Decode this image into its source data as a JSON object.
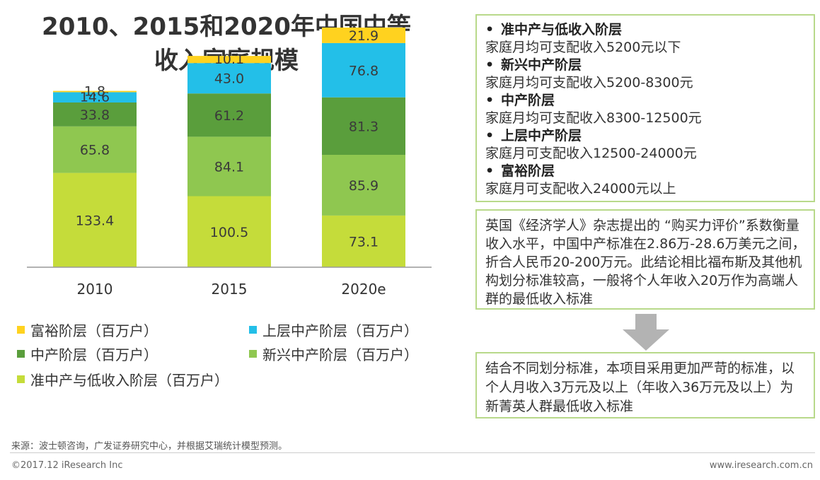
{
  "title_line1": "2010、2015和2020年中国中等",
  "title_line2": "收入家庭规模",
  "chart_data": {
    "type": "stacked-bar",
    "title": "2010、2015和2020年中国中等收入家庭规模",
    "categories": [
      "2010",
      "2015",
      "2020e"
    ],
    "unit": "百万户",
    "series": [
      {
        "name": "准中产与低收入阶层（百万户）",
        "color": "#c5dc3a",
        "values": [
          133.4,
          100.5,
          73.1
        ]
      },
      {
        "name": "新兴中产阶层（百万户）",
        "color": "#8fc750",
        "values": [
          65.8,
          84.1,
          85.9
        ]
      },
      {
        "name": "中产阶层（百万户）",
        "color": "#5a9e3c",
        "values": [
          33.8,
          61.2,
          81.3
        ]
      },
      {
        "name": "上层中产阶层（百万户）",
        "color": "#23bfe8",
        "values": [
          14.6,
          43.0,
          76.8
        ]
      },
      {
        "name": "富裕阶层（百万户）",
        "color": "#ffd21f",
        "values": [
          1.8,
          10.1,
          21.9
        ]
      }
    ],
    "labels": [
      [
        "133.4",
        "100.5",
        "73.1"
      ],
      [
        "65.8",
        "84.1",
        "85.9"
      ],
      [
        "33.8",
        "61.2",
        "81.3"
      ],
      [
        "14.6",
        "43.0",
        "76.8"
      ],
      [
        "1.8",
        "10.1",
        "21.9"
      ]
    ],
    "legend": [
      {
        "name": "富裕阶层（百万户）",
        "color": "#ffd21f"
      },
      {
        "name": "上层中产阶层（百万户）",
        "color": "#23bfe8"
      },
      {
        "name": "中产阶层（百万户）",
        "color": "#5a9e3c"
      },
      {
        "name": "新兴中产阶层（百万户）",
        "color": "#8fc750"
      },
      {
        "name": "准中产与低收入阶层（百万户）",
        "color": "#c5dc3a"
      }
    ]
  },
  "definitions": [
    {
      "bullet": "•",
      "name": "准中产与低收入阶层",
      "desc": "家庭月均可支配收入5200元以下"
    },
    {
      "bullet": "•",
      "name": "新兴中产阶层",
      "desc": "家庭月均可支配收入5200-8300元"
    },
    {
      "bullet": "•",
      "name": "中产阶层",
      "desc": "家庭月均可支配收入8300-12500元"
    },
    {
      "bullet": "•",
      "name": "上层中产阶层",
      "desc": "家庭月可支配收入12500-24000元"
    },
    {
      "bullet": "•",
      "name": "富裕阶层",
      "desc": "家庭月可支配收入24000元以上"
    }
  ],
  "note": "英国《经济学人》杂志提出的 “购买力评价”系数衡量收入水平，中国中产标准在2.86万-28.6万美元之间，折合人民币20-200万元。此结论相比福布斯及其他机构划分标准较高，一般将个人年收入20万作为高端人群的最低收入标准",
  "conclusion": "结合不同划分标准，本项目采用更加严苛的标准，以个人月收入3万元及以上（年收入36万元及以上）为新菁英人群最低收入标准",
  "source": "来源：波士顿咨询，广发证券研究中心，并根据艾瑞统计模型预测。",
  "footer": {
    "copyright": "©2017.12 iResearch Inc",
    "website": "www.iresearch.com.cn"
  },
  "colors": {
    "box_border": "#b8d98a",
    "arrow": "#b3b3b3"
  }
}
